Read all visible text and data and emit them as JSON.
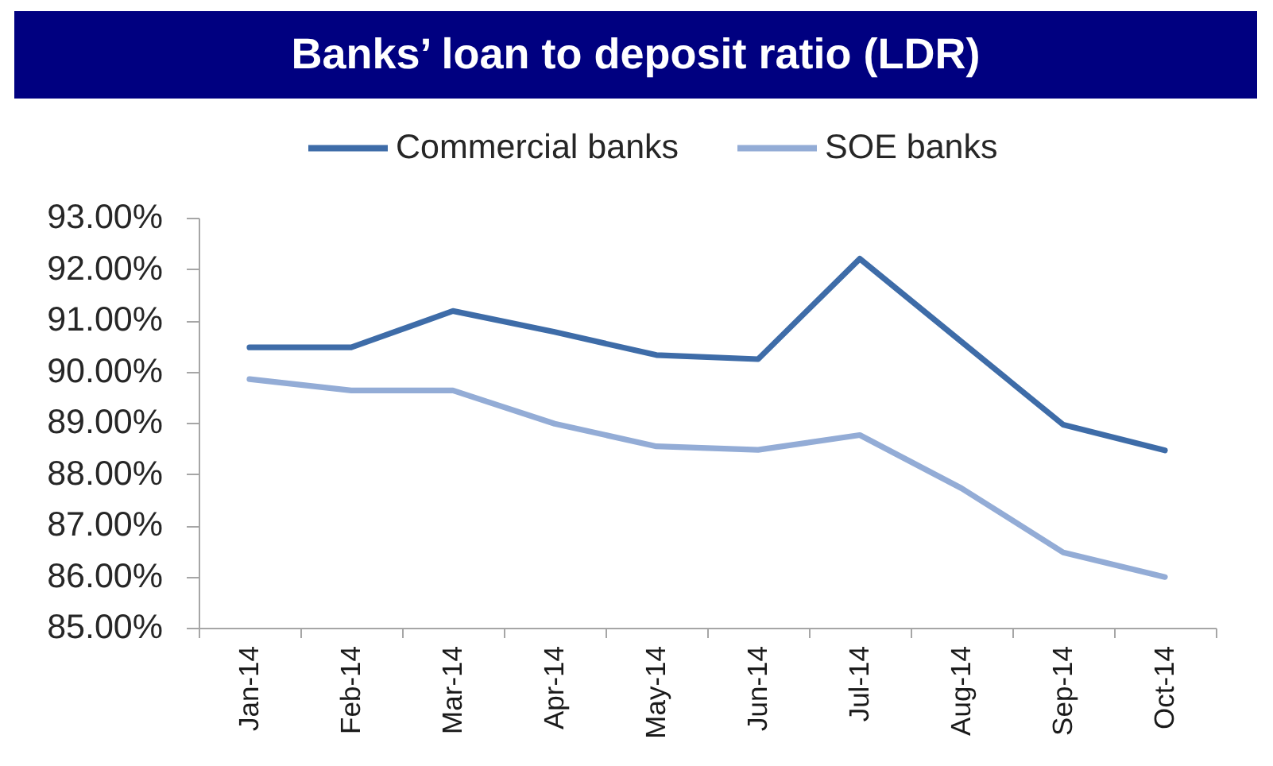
{
  "chart_data": {
    "type": "line",
    "title": "Banks’ loan to deposit ratio (LDR)",
    "categories": [
      "Jan-14",
      "Feb-14",
      "Mar-14",
      "Apr-14",
      "May-14",
      "Jun-14",
      "Jul-14",
      "Aug-14",
      "Sep-14",
      "Oct-14"
    ],
    "series": [
      {
        "name": "Commercial banks",
        "color": "#3e6ca8",
        "values": [
          90.47,
          90.47,
          91.18,
          90.77,
          90.32,
          90.24,
          92.2,
          90.58,
          88.96,
          88.46
        ]
      },
      {
        "name": "SOE banks",
        "color": "#93acd6",
        "values": [
          89.85,
          89.63,
          89.63,
          88.98,
          88.54,
          88.47,
          88.76,
          87.72,
          86.47,
          85.99
        ]
      }
    ],
    "ylim": [
      85,
      93
    ],
    "yticks": [
      {
        "value": 85,
        "label": "85.00%"
      },
      {
        "value": 86,
        "label": "86.00%"
      },
      {
        "value": 87,
        "label": "87.00%"
      },
      {
        "value": 88,
        "label": "88.00%"
      },
      {
        "value": 89,
        "label": "89.00%"
      },
      {
        "value": 90,
        "label": "90.00%"
      },
      {
        "value": 91,
        "label": "91.00%"
      },
      {
        "value": 92,
        "label": "92.00%"
      },
      {
        "value": 93,
        "label": "93.00%"
      }
    ],
    "grid": false,
    "legend": "top",
    "marker": "none",
    "line_style": "solid"
  }
}
